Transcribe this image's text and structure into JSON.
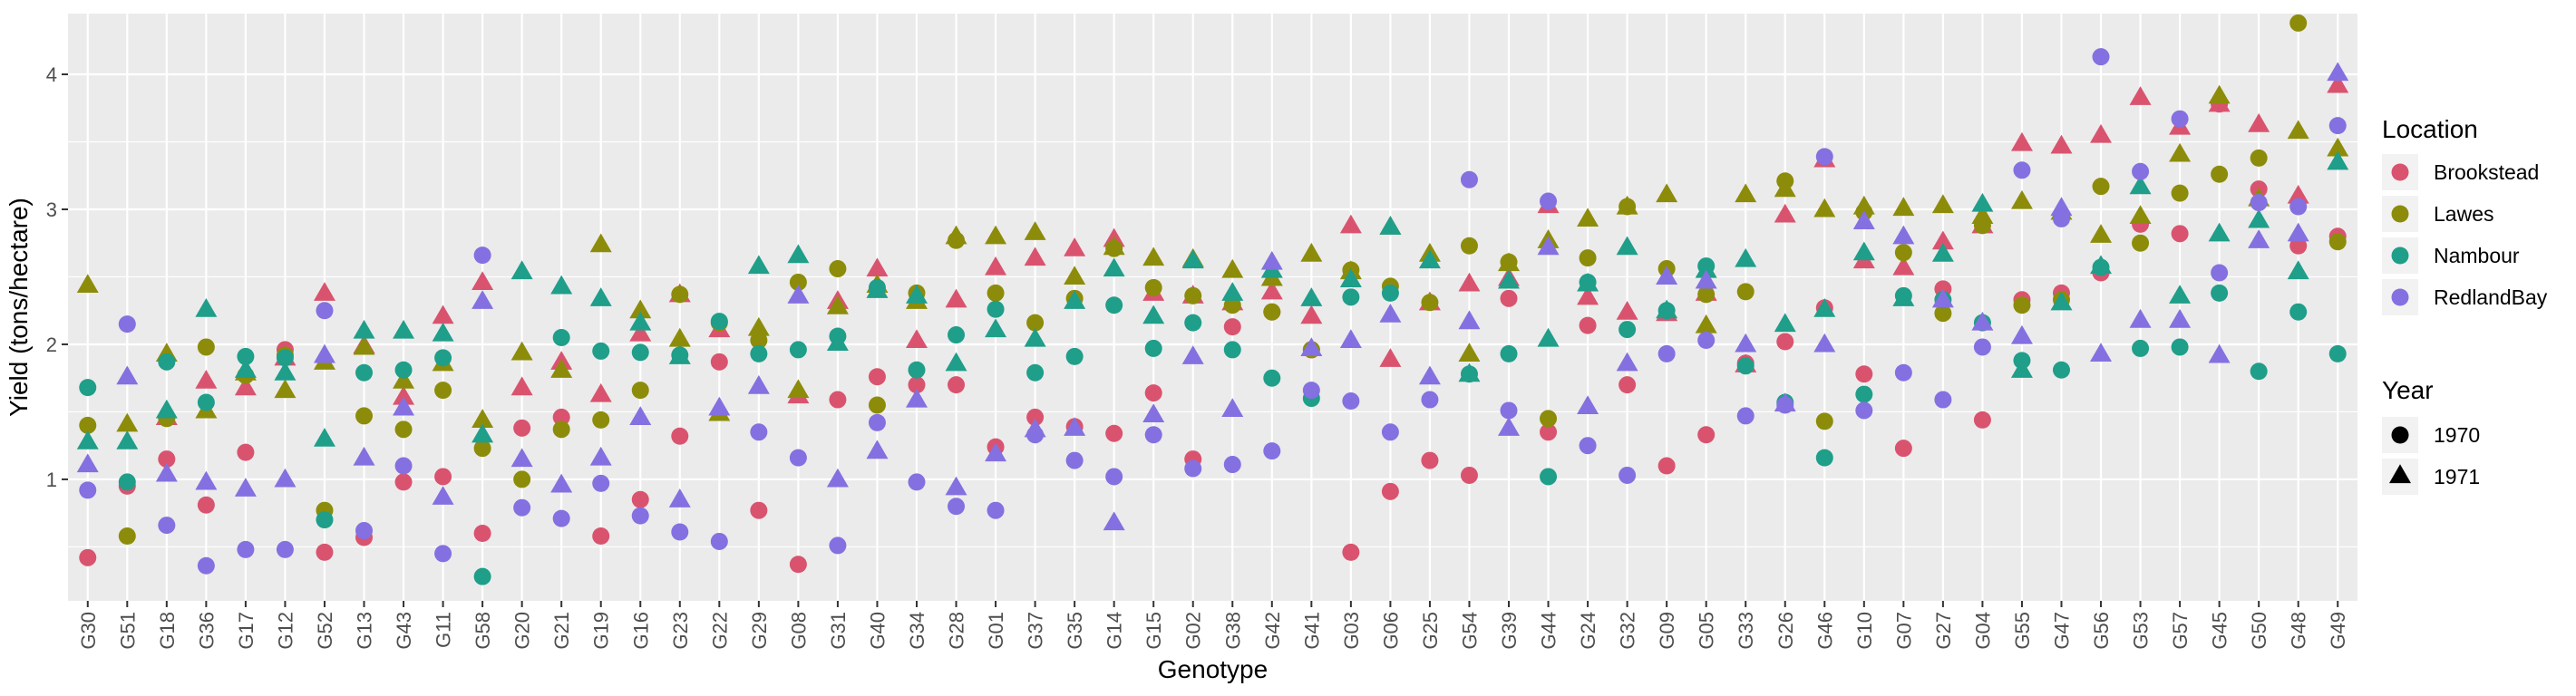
{
  "chart_data": {
    "type": "scatter",
    "xlabel": "Genotype",
    "ylabel": "Yield (tons/hectare)",
    "ylim": [
      0.1,
      4.45
    ],
    "yticks": [
      1,
      2,
      3,
      4
    ],
    "grid": true,
    "legend_position": "right",
    "categories": [
      "G30",
      "G51",
      "G18",
      "G36",
      "G17",
      "G12",
      "G52",
      "G13",
      "G43",
      "G11",
      "G58",
      "G20",
      "G21",
      "G19",
      "G16",
      "G23",
      "G22",
      "G29",
      "G08",
      "G31",
      "G40",
      "G34",
      "G28",
      "G01",
      "G37",
      "G35",
      "G14",
      "G15",
      "G02",
      "G38",
      "G42",
      "G41",
      "G03",
      "G06",
      "G25",
      "G54",
      "G39",
      "G44",
      "G24",
      "G32",
      "G09",
      "G05",
      "G33",
      "G26",
      "G46",
      "G10",
      "G07",
      "G27",
      "G04",
      "G55",
      "G47",
      "G56",
      "G53",
      "G57",
      "G45",
      "G50",
      "G48",
      "G49"
    ],
    "color_legend": {
      "title": "Location",
      "entries": [
        {
          "name": "Brookstead",
          "color": "#d9536f"
        },
        {
          "name": "Lawes",
          "color": "#8c8c0a"
        },
        {
          "name": "Nambour",
          "color": "#1f9e8a"
        },
        {
          "name": "RedlandBay",
          "color": "#8470e0"
        }
      ]
    },
    "shape_legend": {
      "title": "Year",
      "entries": [
        {
          "name": "1970",
          "shape": "circle"
        },
        {
          "name": "1971",
          "shape": "triangle"
        }
      ]
    },
    "series": [
      {
        "location": "Brookstead",
        "year": "1970",
        "values": [
          0.42,
          0.95,
          1.15,
          0.81,
          1.2,
          1.96,
          0.46,
          0.57,
          0.98,
          1.02,
          0.6,
          1.38,
          1.46,
          0.58,
          0.85,
          1.32,
          1.87,
          0.77,
          0.37,
          1.59,
          1.76,
          1.7,
          1.7,
          1.24,
          1.46,
          1.39,
          1.34,
          1.64,
          1.15,
          2.13,
          2.24,
          1.96,
          0.46,
          0.91,
          1.14,
          1.03,
          2.34,
          1.35,
          2.14,
          1.7,
          1.1,
          1.33,
          1.86,
          2.02,
          2.27,
          1.78,
          1.23,
          2.41,
          1.44,
          2.33,
          2.38,
          2.53,
          2.89,
          2.82,
          3.78,
          3.15,
          2.73,
          2.8
        ]
      },
      {
        "location": "Brookstead",
        "year": "1971",
        "values": [
          null,
          null,
          1.45,
          1.72,
          1.67,
          1.89,
          2.37,
          1.98,
          1.6,
          2.2,
          2.45,
          1.67,
          1.86,
          1.62,
          2.07,
          2.36,
          2.1,
          null,
          1.61,
          2.31,
          2.55,
          2.02,
          2.32,
          2.56,
          2.63,
          2.7,
          2.77,
          2.37,
          2.35,
          2.3,
          2.38,
          2.2,
          2.87,
          1.88,
          2.3,
          2.44,
          2.48,
          3.02,
          2.34,
          2.23,
          2.22,
          2.37,
          1.84,
          2.95,
          3.36,
          2.61,
          2.56,
          2.75,
          2.87,
          3.48,
          3.46,
          3.54,
          3.82,
          3.6,
          3.77,
          3.62,
          3.09,
          3.91
        ]
      },
      {
        "location": "Lawes",
        "year": "1970",
        "values": [
          1.4,
          0.58,
          1.45,
          1.98,
          1.77,
          1.92,
          0.77,
          1.47,
          1.37,
          1.66,
          1.23,
          1.0,
          1.37,
          1.44,
          1.66,
          2.37,
          2.16,
          2.03,
          2.46,
          2.56,
          1.55,
          2.38,
          2.77,
          2.38,
          2.16,
          2.34,
          2.71,
          2.42,
          2.36,
          2.29,
          2.24,
          1.96,
          2.55,
          2.43,
          2.31,
          2.73,
          2.61,
          1.45,
          2.64,
          3.02,
          2.56,
          2.37,
          2.39,
          3.21,
          1.43,
          2.98,
          2.68,
          2.23,
          2.88,
          2.29,
          2.33,
          3.17,
          2.75,
          3.12,
          3.26,
          3.38,
          4.38,
          2.76
        ]
      },
      {
        "location": "Lawes",
        "year": "1971",
        "values": [
          2.43,
          1.4,
          1.92,
          1.5,
          1.78,
          1.65,
          1.86,
          1.97,
          1.72,
          1.85,
          1.43,
          1.93,
          1.8,
          2.73,
          2.24,
          2.03,
          1.48,
          2.11,
          1.65,
          2.27,
          2.43,
          2.31,
          2.79,
          2.79,
          2.82,
          2.49,
          2.71,
          2.63,
          2.62,
          2.54,
          2.48,
          2.66,
          2.53,
          2.86,
          2.66,
          1.92,
          2.59,
          2.76,
          2.92,
          3.01,
          3.1,
          2.13,
          3.1,
          3.14,
          2.99,
          3.01,
          3.0,
          3.02,
          2.94,
          3.05,
          2.97,
          2.8,
          2.94,
          3.4,
          3.83,
          3.07,
          3.57,
          3.44
        ]
      },
      {
        "location": "Nambour",
        "year": "1970",
        "values": [
          1.68,
          0.98,
          1.87,
          1.57,
          1.91,
          1.9,
          0.7,
          1.79,
          1.81,
          1.9,
          0.28,
          null,
          2.05,
          1.95,
          1.94,
          1.92,
          2.17,
          1.93,
          1.96,
          2.06,
          2.42,
          1.81,
          2.07,
          2.26,
          1.79,
          1.91,
          2.29,
          1.97,
          2.16,
          1.96,
          1.75,
          1.6,
          2.35,
          2.38,
          null,
          1.78,
          1.93,
          1.02,
          2.46,
          2.11,
          2.25,
          2.58,
          1.84,
          1.57,
          1.16,
          1.63,
          2.36,
          2.33,
          2.16,
          1.88,
          1.81,
          2.57,
          1.97,
          1.98,
          2.38,
          1.8,
          2.24,
          1.93
        ]
      },
      {
        "location": "Nambour",
        "year": "1971",
        "values": [
          1.27,
          1.27,
          1.5,
          2.25,
          1.8,
          1.78,
          1.29,
          2.09,
          2.09,
          2.07,
          1.32,
          2.53,
          2.42,
          2.33,
          2.15,
          1.9,
          null,
          2.57,
          2.65,
          2.0,
          2.39,
          2.35,
          1.85,
          2.1,
          2.03,
          2.31,
          2.55,
          2.2,
          2.61,
          2.37,
          2.54,
          2.33,
          2.47,
          2.86,
          2.61,
          1.77,
          2.46,
          2.03,
          2.44,
          2.71,
          2.24,
          2.54,
          2.62,
          2.14,
          2.25,
          2.67,
          2.33,
          2.66,
          3.03,
          1.8,
          2.3,
          2.57,
          3.16,
          2.35,
          2.81,
          2.91,
          2.53,
          3.34
        ]
      },
      {
        "location": "RedlandBay",
        "year": "1970",
        "values": [
          0.92,
          2.15,
          0.66,
          0.36,
          0.48,
          0.48,
          2.25,
          0.62,
          1.1,
          0.45,
          2.66,
          0.79,
          0.71,
          0.97,
          0.73,
          0.61,
          0.54,
          1.35,
          1.16,
          0.51,
          1.42,
          0.98,
          0.8,
          0.77,
          1.33,
          1.14,
          1.02,
          1.33,
          1.08,
          1.11,
          1.21,
          1.66,
          1.58,
          1.35,
          1.59,
          3.22,
          1.51,
          3.06,
          1.25,
          1.03,
          1.93,
          2.03,
          1.47,
          1.55,
          3.39,
          1.51,
          1.79,
          1.59,
          1.98,
          3.29,
          2.93,
          4.13,
          3.28,
          3.67,
          2.53,
          3.05,
          3.02,
          3.62
        ]
      },
      {
        "location": "RedlandBay",
        "year": "1971",
        "values": [
          1.1,
          1.75,
          1.03,
          0.97,
          0.92,
          0.99,
          1.91,
          1.15,
          1.52,
          0.86,
          2.31,
          1.14,
          0.95,
          1.15,
          1.45,
          0.84,
          1.52,
          1.68,
          2.35,
          0.99,
          1.2,
          1.58,
          0.93,
          1.18,
          1.36,
          1.37,
          0.67,
          1.47,
          1.9,
          1.51,
          2.6,
          1.96,
          2.02,
          2.21,
          1.75,
          2.16,
          1.37,
          2.71,
          1.53,
          1.85,
          2.49,
          2.46,
          1.99,
          1.55,
          1.99,
          2.9,
          2.79,
          2.32,
          2.15,
          2.05,
          3.0,
          1.92,
          2.17,
          2.17,
          1.91,
          2.76,
          2.81,
          4.0
        ]
      }
    ]
  }
}
